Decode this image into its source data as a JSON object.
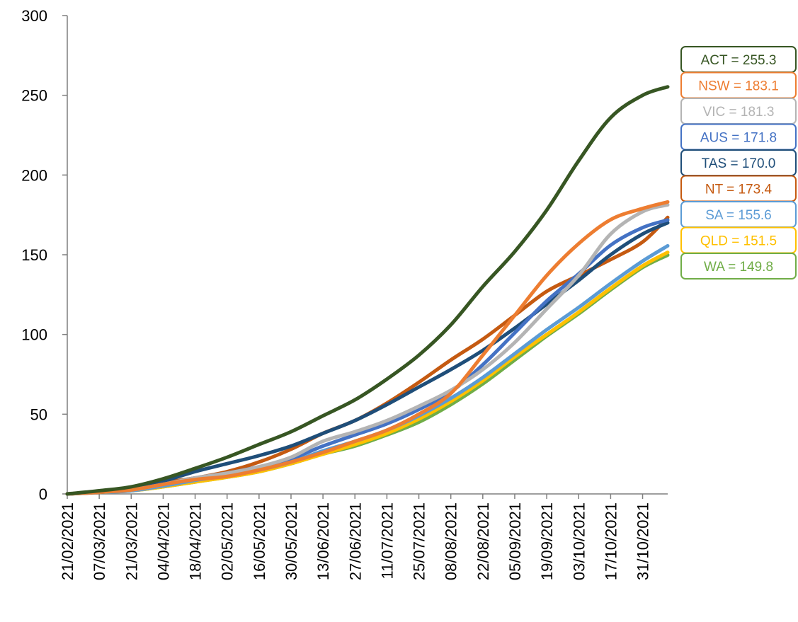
{
  "chart_data": {
    "type": "line",
    "title": "",
    "xlabel": "",
    "ylabel": "",
    "x_start": "21/02/2021",
    "x_end": "11/11/2021",
    "ylim": [
      0,
      300
    ],
    "y_ticks": [
      0,
      50,
      100,
      150,
      200,
      250,
      300
    ],
    "x_tick_labels": [
      "21/02/2021",
      "07/03/2021",
      "21/03/2021",
      "04/04/2021",
      "18/04/2021",
      "02/05/2021",
      "16/05/2021",
      "30/05/2021",
      "13/06/2021",
      "27/06/2021",
      "11/07/2021",
      "25/07/2021",
      "08/08/2021",
      "22/08/2021",
      "05/09/2021",
      "19/09/2021",
      "03/10/2021",
      "17/10/2021",
      "31/10/2021"
    ],
    "grid": false,
    "legend": "end-labels-right",
    "series": [
      {
        "name": "ACT",
        "label": "ACT = 255.3",
        "color": "#375623",
        "points": [
          [
            "21/02/2021",
            0
          ],
          [
            "07/03/2021",
            2
          ],
          [
            "21/03/2021",
            4.5
          ],
          [
            "04/04/2021",
            9.5
          ],
          [
            "18/04/2021",
            16
          ],
          [
            "02/05/2021",
            23
          ],
          [
            "16/05/2021",
            31
          ],
          [
            "30/05/2021",
            39
          ],
          [
            "13/06/2021",
            49
          ],
          [
            "27/06/2021",
            59
          ],
          [
            "11/07/2021",
            72
          ],
          [
            "25/07/2021",
            87
          ],
          [
            "08/08/2021",
            106
          ],
          [
            "22/08/2021",
            130
          ],
          [
            "05/09/2021",
            152
          ],
          [
            "19/09/2021",
            178
          ],
          [
            "03/10/2021",
            209
          ],
          [
            "17/10/2021",
            236
          ],
          [
            "31/10/2021",
            250
          ],
          [
            "11/11/2021",
            255.3
          ]
        ]
      },
      {
        "name": "NSW",
        "label": "NSW = 183.1",
        "color": "#ED7D31",
        "points": [
          [
            "21/02/2021",
            0
          ],
          [
            "07/03/2021",
            1.2
          ],
          [
            "21/03/2021",
            2.5
          ],
          [
            "04/04/2021",
            6
          ],
          [
            "18/04/2021",
            9
          ],
          [
            "02/05/2021",
            11
          ],
          [
            "16/05/2021",
            15
          ],
          [
            "30/05/2021",
            20
          ],
          [
            "13/06/2021",
            26
          ],
          [
            "27/06/2021",
            33
          ],
          [
            "11/07/2021",
            40
          ],
          [
            "25/07/2021",
            50
          ],
          [
            "08/08/2021",
            63
          ],
          [
            "22/08/2021",
            87
          ],
          [
            "05/09/2021",
            112
          ],
          [
            "19/09/2021",
            137
          ],
          [
            "03/10/2021",
            157
          ],
          [
            "17/10/2021",
            172
          ],
          [
            "31/10/2021",
            179
          ],
          [
            "11/11/2021",
            183.1
          ]
        ]
      },
      {
        "name": "VIC",
        "label": "VIC = 181.3",
        "color": "#B4B4B4",
        "points": [
          [
            "21/02/2021",
            0
          ],
          [
            "07/03/2021",
            1.2
          ],
          [
            "21/03/2021",
            2.5
          ],
          [
            "04/04/2021",
            6
          ],
          [
            "18/04/2021",
            10
          ],
          [
            "02/05/2021",
            13
          ],
          [
            "16/05/2021",
            17
          ],
          [
            "30/05/2021",
            23
          ],
          [
            "13/06/2021",
            33
          ],
          [
            "27/06/2021",
            39
          ],
          [
            "11/07/2021",
            46
          ],
          [
            "25/07/2021",
            55
          ],
          [
            "08/08/2021",
            65
          ],
          [
            "22/08/2021",
            78
          ],
          [
            "05/09/2021",
            95
          ],
          [
            "19/09/2021",
            116
          ],
          [
            "03/10/2021",
            137
          ],
          [
            "17/10/2021",
            163
          ],
          [
            "31/10/2021",
            177
          ],
          [
            "11/11/2021",
            181.3
          ]
        ]
      },
      {
        "name": "AUS",
        "label": "AUS = 171.8",
        "color": "#4472C4",
        "points": [
          [
            "21/02/2021",
            0
          ],
          [
            "07/03/2021",
            1.2
          ],
          [
            "21/03/2021",
            2.5
          ],
          [
            "04/04/2021",
            6
          ],
          [
            "18/04/2021",
            10
          ],
          [
            "02/05/2021",
            13
          ],
          [
            "16/05/2021",
            17
          ],
          [
            "30/05/2021",
            22
          ],
          [
            "13/06/2021",
            30
          ],
          [
            "27/06/2021",
            37
          ],
          [
            "11/07/2021",
            44
          ],
          [
            "25/07/2021",
            53
          ],
          [
            "08/08/2021",
            64
          ],
          [
            "22/08/2021",
            81
          ],
          [
            "05/09/2021",
            101
          ],
          [
            "19/09/2021",
            121
          ],
          [
            "03/10/2021",
            138
          ],
          [
            "17/10/2021",
            156
          ],
          [
            "31/10/2021",
            167
          ],
          [
            "11/11/2021",
            171.8
          ]
        ]
      },
      {
        "name": "TAS",
        "label": "TAS = 170.0",
        "color": "#1F4E79",
        "points": [
          [
            "21/02/2021",
            0
          ],
          [
            "07/03/2021",
            1.5
          ],
          [
            "21/03/2021",
            3.5
          ],
          [
            "04/04/2021",
            8
          ],
          [
            "18/04/2021",
            14
          ],
          [
            "02/05/2021",
            19
          ],
          [
            "16/05/2021",
            24
          ],
          [
            "30/05/2021",
            30
          ],
          [
            "13/06/2021",
            38
          ],
          [
            "27/06/2021",
            46
          ],
          [
            "11/07/2021",
            56
          ],
          [
            "25/07/2021",
            67
          ],
          [
            "08/08/2021",
            78
          ],
          [
            "22/08/2021",
            90
          ],
          [
            "05/09/2021",
            104
          ],
          [
            "19/09/2021",
            119
          ],
          [
            "03/10/2021",
            134
          ],
          [
            "17/10/2021",
            150
          ],
          [
            "31/10/2021",
            163
          ],
          [
            "11/11/2021",
            170.0
          ]
        ]
      },
      {
        "name": "NT",
        "label": "NT = 173.4",
        "color": "#C55A11",
        "points": [
          [
            "21/02/2021",
            0
          ],
          [
            "07/03/2021",
            1
          ],
          [
            "21/03/2021",
            3
          ],
          [
            "04/04/2021",
            7
          ],
          [
            "18/04/2021",
            10
          ],
          [
            "02/05/2021",
            14
          ],
          [
            "16/05/2021",
            20
          ],
          [
            "30/05/2021",
            28
          ],
          [
            "13/06/2021",
            38
          ],
          [
            "27/06/2021",
            46
          ],
          [
            "11/07/2021",
            57
          ],
          [
            "25/07/2021",
            70
          ],
          [
            "08/08/2021",
            84
          ],
          [
            "22/08/2021",
            97
          ],
          [
            "05/09/2021",
            112
          ],
          [
            "19/09/2021",
            127
          ],
          [
            "03/10/2021",
            137
          ],
          [
            "17/10/2021",
            147
          ],
          [
            "31/10/2021",
            158
          ],
          [
            "11/11/2021",
            173.4
          ]
        ]
      },
      {
        "name": "SA",
        "label": "SA = 155.6",
        "color": "#5B9BD5",
        "points": [
          [
            "21/02/2021",
            0
          ],
          [
            "07/03/2021",
            1
          ],
          [
            "21/03/2021",
            2
          ],
          [
            "04/04/2021",
            5
          ],
          [
            "18/04/2021",
            8.5
          ],
          [
            "02/05/2021",
            11.5
          ],
          [
            "16/05/2021",
            15
          ],
          [
            "30/05/2021",
            20
          ],
          [
            "13/06/2021",
            27
          ],
          [
            "27/06/2021",
            33
          ],
          [
            "11/07/2021",
            40
          ],
          [
            "25/07/2021",
            49
          ],
          [
            "08/08/2021",
            60
          ],
          [
            "22/08/2021",
            73
          ],
          [
            "05/09/2021",
            88
          ],
          [
            "19/09/2021",
            103
          ],
          [
            "03/10/2021",
            117
          ],
          [
            "17/10/2021",
            132
          ],
          [
            "31/10/2021",
            146
          ],
          [
            "11/11/2021",
            155.6
          ]
        ]
      },
      {
        "name": "QLD",
        "label": "QLD = 151.5",
        "color": "#FFC000",
        "points": [
          [
            "21/02/2021",
            0
          ],
          [
            "07/03/2021",
            1
          ],
          [
            "21/03/2021",
            2
          ],
          [
            "04/04/2021",
            4.5
          ],
          [
            "18/04/2021",
            7.5
          ],
          [
            "02/05/2021",
            10.5
          ],
          [
            "16/05/2021",
            14
          ],
          [
            "30/05/2021",
            19
          ],
          [
            "13/06/2021",
            25
          ],
          [
            "27/06/2021",
            31
          ],
          [
            "11/07/2021",
            38
          ],
          [
            "25/07/2021",
            47
          ],
          [
            "08/08/2021",
            58
          ],
          [
            "22/08/2021",
            71
          ],
          [
            "05/09/2021",
            86
          ],
          [
            "19/09/2021",
            100
          ],
          [
            "03/10/2021",
            114
          ],
          [
            "17/10/2021",
            129
          ],
          [
            "31/10/2021",
            143
          ],
          [
            "11/11/2021",
            151.5
          ]
        ]
      },
      {
        "name": "WA",
        "label": "WA = 149.8",
        "color": "#70AD47",
        "points": [
          [
            "21/02/2021",
            0
          ],
          [
            "07/03/2021",
            1
          ],
          [
            "21/03/2021",
            2
          ],
          [
            "04/04/2021",
            4.5
          ],
          [
            "18/04/2021",
            7.5
          ],
          [
            "02/05/2021",
            10.5
          ],
          [
            "16/05/2021",
            14
          ],
          [
            "30/05/2021",
            19
          ],
          [
            "13/06/2021",
            25
          ],
          [
            "27/06/2021",
            30
          ],
          [
            "11/07/2021",
            37
          ],
          [
            "25/07/2021",
            45
          ],
          [
            "08/08/2021",
            56
          ],
          [
            "22/08/2021",
            69
          ],
          [
            "05/09/2021",
            84
          ],
          [
            "19/09/2021",
            99
          ],
          [
            "03/10/2021",
            113
          ],
          [
            "17/10/2021",
            128
          ],
          [
            "31/10/2021",
            142
          ],
          [
            "11/11/2021",
            149.8
          ]
        ]
      }
    ]
  }
}
